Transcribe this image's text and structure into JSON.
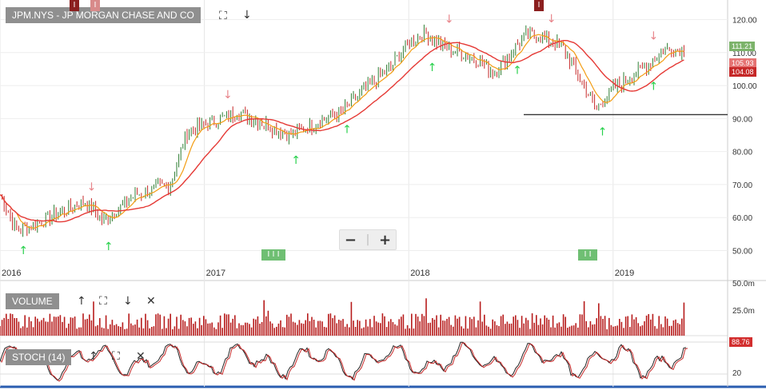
{
  "title": "JPM.NYS - JP MORGAN CHASE AND CO",
  "volume_label": "VOLUME",
  "stoch_label": "STOCH (14)",
  "colors": {
    "up": "#2e7d32",
    "down": "#c62828",
    "sma_short": "#f39c12",
    "sma_long": "#e53935",
    "volume": "#b71c1c",
    "stoch": "#c62828",
    "buy": "#26d04a",
    "sell": "#e8848a",
    "support": "#333333"
  },
  "icons": [
    "fullscreen-icon",
    "down-arrow-icon",
    "up-arrow-icon",
    "close-icon",
    "zoom-out-icon",
    "zoom-in-icon"
  ],
  "chart_data": {
    "type": "candlestick",
    "x_ticks": [
      "2016",
      "2017",
      "2018",
      "2019"
    ],
    "price_axis": {
      "ticks": [
        "50.00",
        "60.00",
        "70.00",
        "80.00",
        "90.00",
        "100.00",
        "110.00",
        "120.00"
      ],
      "ylim": [
        46,
        124
      ]
    },
    "price_anchors": [
      [
        "2016-01",
        67
      ],
      [
        "2016-02",
        56
      ],
      [
        "2016-03",
        58
      ],
      [
        "2016-06",
        65
      ],
      [
        "2016-07",
        59
      ],
      [
        "2016-09",
        67
      ],
      [
        "2016-11",
        70
      ],
      [
        "2016-12",
        86
      ],
      [
        "2017-03",
        92
      ],
      [
        "2017-06",
        85
      ],
      [
        "2017-09",
        92
      ],
      [
        "2017-12",
        106
      ],
      [
        "2018-01",
        113
      ],
      [
        "2018-02",
        116
      ],
      [
        "2018-03",
        112
      ],
      [
        "2018-05",
        108
      ],
      [
        "2018-06",
        104
      ],
      [
        "2018-08",
        116
      ],
      [
        "2018-10",
        112
      ],
      [
        "2018-12",
        93
      ],
      [
        "2019-01",
        99
      ],
      [
        "2019-03",
        106
      ],
      [
        "2019-04",
        111
      ]
    ],
    "last_price": "111.21",
    "price_tags": [
      "105.93",
      "104.08"
    ],
    "support_level": 91.2,
    "buy_signals": [
      "2016-02",
      "2016-07",
      "2017-06",
      "2017-09",
      "2018-02",
      "2018-07",
      "2018-12",
      "2019-03"
    ],
    "sell_signals": [
      "2016-06",
      "2017-02",
      "2018-03",
      "2018-09",
      "2019-03"
    ],
    "volume_axis": {
      "ticks": [
        "50.0m",
        "25.0m"
      ]
    },
    "stoch_axis": {
      "ticks": [
        "20"
      ]
    },
    "stoch_value": "88.76"
  }
}
